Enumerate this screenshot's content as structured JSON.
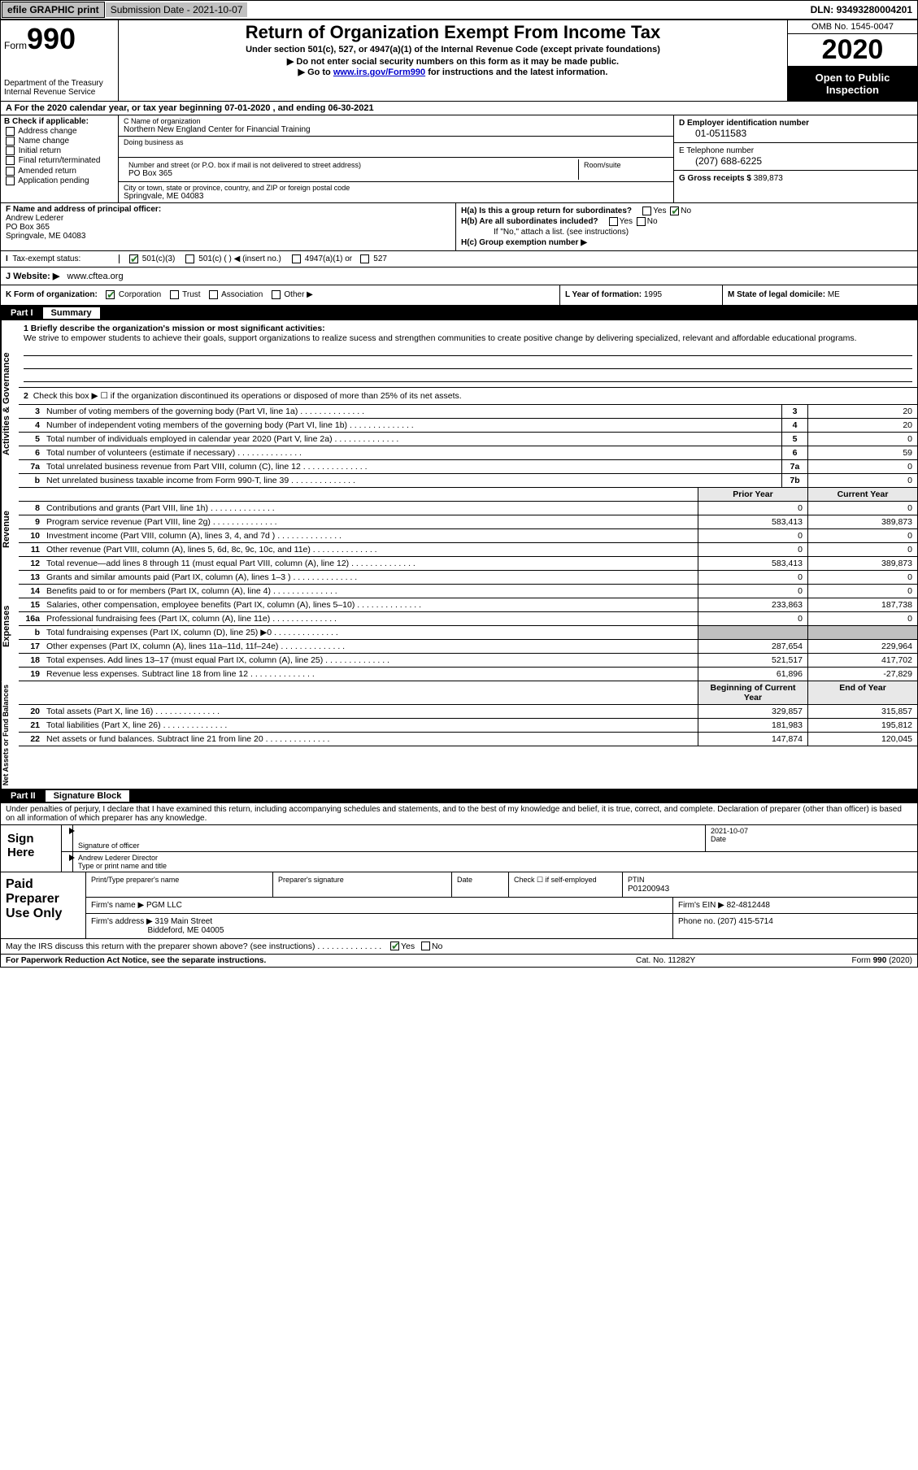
{
  "topbar": {
    "efile": "efile GRAPHIC print",
    "submission_label": "Submission Date - ",
    "submission_date": "2021-10-07",
    "dln_label": "DLN: ",
    "dln": "93493280004201"
  },
  "header": {
    "form_label": "Form",
    "form_num": "990",
    "dept1": "Department of the Treasury",
    "dept2": "Internal Revenue Service",
    "title": "Return of Organization Exempt From Income Tax",
    "sub1": "Under section 501(c), 527, or 4947(a)(1) of the Internal Revenue Code (except private foundations)",
    "sub2": "▶ Do not enter social security numbers on this form as it may be made public.",
    "sub3_pre": "▶ Go to ",
    "sub3_link": "www.irs.gov/Form990",
    "sub3_post": " for instructions and the latest information.",
    "omb": "OMB No. 1545-0047",
    "year": "2020",
    "open": "Open to Public Inspection"
  },
  "rowA": "A For the 2020 calendar year, or tax year beginning 07-01-2020    , and ending 06-30-2021",
  "B": {
    "label": "B Check if applicable:",
    "items": [
      "Address change",
      "Name change",
      "Initial return",
      "Final return/terminated",
      "Amended return",
      "Application pending"
    ]
  },
  "C": {
    "name_label": "C Name of organization",
    "name": "Northern New England Center for Financial Training",
    "dba_label": "Doing business as",
    "addr_label": "Number and street (or P.O. box if mail is not delivered to street address)",
    "room_label": "Room/suite",
    "addr": "PO Box 365",
    "city_label": "City or town, state or province, country, and ZIP or foreign postal code",
    "city": "Springvale, ME  04083"
  },
  "D": {
    "label": "D Employer identification number",
    "value": "01-0511583"
  },
  "E": {
    "label": "E Telephone number",
    "value": "(207) 688-6225"
  },
  "G": {
    "label": "G Gross receipts $ ",
    "value": "389,873"
  },
  "F": {
    "label": "F  Name and address of principal officer:",
    "name": "Andrew Lederer",
    "addr1": "PO Box 365",
    "addr2": "Springvale, ME  04083"
  },
  "H": {
    "a": "H(a)  Is this a group return for subordinates?",
    "b": "H(b)  Are all subordinates included?",
    "bnote": "If \"No,\" attach a list. (see instructions)",
    "c": "H(c)  Group exemption number ▶"
  },
  "I": {
    "label": "Tax-exempt status:",
    "o1": "501(c)(3)",
    "o2": "501(c) (   ) ◀ (insert no.)",
    "o3": "4947(a)(1) or",
    "o4": "527"
  },
  "J": {
    "label": "J   Website: ▶",
    "value": "www.cftea.org"
  },
  "K": {
    "label": "K Form of organization:",
    "corp": "Corporation",
    "trust": "Trust",
    "assoc": "Association",
    "other": "Other ▶"
  },
  "L": {
    "label": "L Year of formation: ",
    "value": "1995"
  },
  "M": {
    "label": "M State of legal domicile: ",
    "value": "ME"
  },
  "part1": {
    "num": "Part I",
    "title": "Summary",
    "q1_label": "1  Briefly describe the organization's mission or most significant activities:",
    "q1_val": "We strive to empower students to achieve their goals, support organizations to realize sucess and strengthen communities to create positive change by delivering specialized, relevant and affordable educational programs.",
    "q2": "Check this box ▶ ☐  if the organization discontinued its operations or disposed of more than 25% of its net assets.",
    "side1": "Activities & Governance",
    "side2": "Revenue",
    "side3": "Expenses",
    "side4": "Net Assets or Fund Balances",
    "lines_gov": [
      {
        "n": "3",
        "t": "Number of voting members of the governing body (Part VI, line 1a)",
        "b": "3",
        "v": "20"
      },
      {
        "n": "4",
        "t": "Number of independent voting members of the governing body (Part VI, line 1b)",
        "b": "4",
        "v": "20"
      },
      {
        "n": "5",
        "t": "Total number of individuals employed in calendar year 2020 (Part V, line 2a)",
        "b": "5",
        "v": "0"
      },
      {
        "n": "6",
        "t": "Total number of volunteers (estimate if necessary)",
        "b": "6",
        "v": "59"
      },
      {
        "n": "7a",
        "t": "Total unrelated business revenue from Part VIII, column (C), line 12",
        "b": "7a",
        "v": "0"
      },
      {
        "n": "b",
        "t": "Net unrelated business taxable income from Form 990-T, line 39",
        "b": "7b",
        "v": "0"
      }
    ],
    "hdr_prior": "Prior Year",
    "hdr_curr": "Current Year",
    "lines_rev": [
      {
        "n": "8",
        "t": "Contributions and grants (Part VIII, line 1h)",
        "p": "0",
        "c": "0"
      },
      {
        "n": "9",
        "t": "Program service revenue (Part VIII, line 2g)",
        "p": "583,413",
        "c": "389,873"
      },
      {
        "n": "10",
        "t": "Investment income (Part VIII, column (A), lines 3, 4, and 7d )",
        "p": "0",
        "c": "0"
      },
      {
        "n": "11",
        "t": "Other revenue (Part VIII, column (A), lines 5, 6d, 8c, 9c, 10c, and 11e)",
        "p": "0",
        "c": "0"
      },
      {
        "n": "12",
        "t": "Total revenue—add lines 8 through 11 (must equal Part VIII, column (A), line 12)",
        "p": "583,413",
        "c": "389,873"
      }
    ],
    "lines_exp": [
      {
        "n": "13",
        "t": "Grants and similar amounts paid (Part IX, column (A), lines 1–3 )",
        "p": "0",
        "c": "0"
      },
      {
        "n": "14",
        "t": "Benefits paid to or for members (Part IX, column (A), line 4)",
        "p": "0",
        "c": "0"
      },
      {
        "n": "15",
        "t": "Salaries, other compensation, employee benefits (Part IX, column (A), lines 5–10)",
        "p": "233,863",
        "c": "187,738"
      },
      {
        "n": "16a",
        "t": "Professional fundraising fees (Part IX, column (A), line 11e)",
        "p": "0",
        "c": "0"
      },
      {
        "n": "b",
        "t": "Total fundraising expenses (Part IX, column (D), line 25) ▶0",
        "p": "",
        "c": "",
        "gray": true
      },
      {
        "n": "17",
        "t": "Other expenses (Part IX, column (A), lines 11a–11d, 11f–24e)",
        "p": "287,654",
        "c": "229,964"
      },
      {
        "n": "18",
        "t": "Total expenses. Add lines 13–17 (must equal Part IX, column (A), line 25)",
        "p": "521,517",
        "c": "417,702"
      },
      {
        "n": "19",
        "t": "Revenue less expenses. Subtract line 18 from line 12",
        "p": "61,896",
        "c": "-27,829"
      }
    ],
    "hdr_beg": "Beginning of Current Year",
    "hdr_end": "End of Year",
    "lines_net": [
      {
        "n": "20",
        "t": "Total assets (Part X, line 16)",
        "p": "329,857",
        "c": "315,857"
      },
      {
        "n": "21",
        "t": "Total liabilities (Part X, line 26)",
        "p": "181,983",
        "c": "195,812"
      },
      {
        "n": "22",
        "t": "Net assets or fund balances. Subtract line 21 from line 20",
        "p": "147,874",
        "c": "120,045"
      }
    ]
  },
  "part2": {
    "num": "Part II",
    "title": "Signature Block",
    "decl": "Under penalties of perjury, I declare that I have examined this return, including accompanying schedules and statements, and to the best of my knowledge and belief, it is true, correct, and complete. Declaration of preparer (other than officer) is based on all information of which preparer has any knowledge.",
    "sign_here": "Sign Here",
    "sig_of": "Signature of officer",
    "date_lbl": "Date",
    "date_val": "2021-10-07",
    "name_title": "Andrew Lederer  Director",
    "type_name": "Type or print name and title",
    "paid": "Paid Preparer Use Only",
    "pt_name_lbl": "Print/Type preparer's name",
    "pt_sig_lbl": "Preparer's signature",
    "pt_date_lbl": "Date",
    "pt_check": "Check ☐ if self-employed",
    "pt_ptin_lbl": "PTIN",
    "pt_ptin": "P01200943",
    "firm_name_lbl": "Firm's name   ▶ ",
    "firm_name": "PGM LLC",
    "firm_ein_lbl": "Firm's EIN ▶ ",
    "firm_ein": "82-4812448",
    "firm_addr_lbl": "Firm's address ▶ ",
    "firm_addr1": "319 Main Street",
    "firm_addr2": "Biddeford, ME  04005",
    "firm_phone_lbl": "Phone no. ",
    "firm_phone": "(207) 415-5714",
    "discuss": "May the IRS discuss this return with the preparer shown above? (see instructions)"
  },
  "footer": {
    "l": "For Paperwork Reduction Act Notice, see the separate instructions.",
    "m": "Cat. No. 11282Y",
    "r": "Form 990 (2020)"
  }
}
